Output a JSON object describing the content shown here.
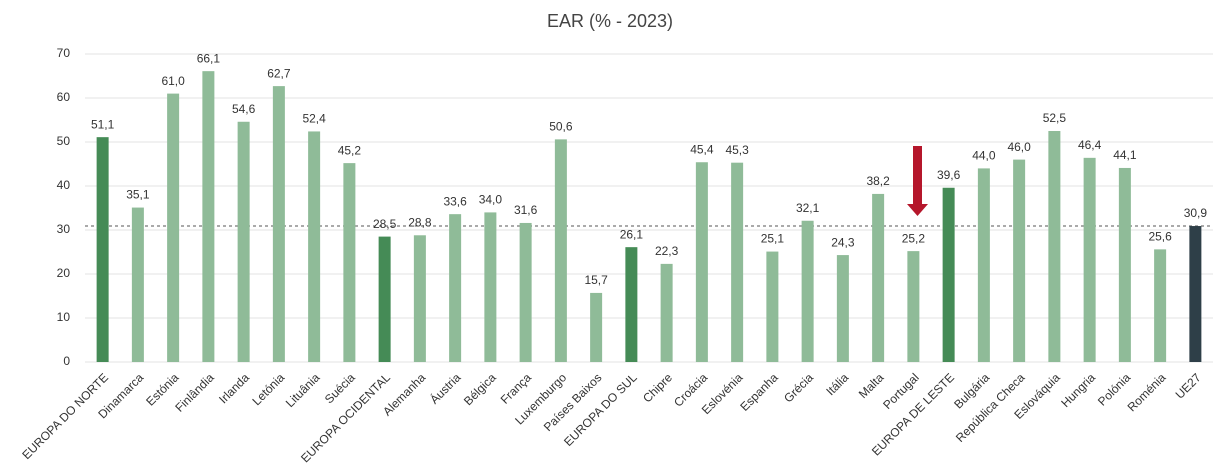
{
  "chart_data": {
    "type": "bar",
    "title": "EAR (% - 2023)",
    "categories": [
      "EUROPA DO NORTE",
      "Dinamarca",
      "Estónia",
      "Finlândia",
      "Irlanda",
      "Letónia",
      "Lituânia",
      "Suécia",
      "EUROPA OCIDENTAL",
      "Alemanha",
      "Áustria",
      "Bélgica",
      "França",
      "Luxemburgo",
      "Países Baixos",
      "EUROPA DO SUL",
      "Chipre",
      "Croácia",
      "Eslovénia",
      "Espanha",
      "Grécia",
      "Itália",
      "Malta",
      "Portugal",
      "EUROPA DE LESTE",
      "Bulgária",
      "República Checa",
      "Eslováquia",
      "Hungria",
      "Polónia",
      "Roménia",
      "UE27"
    ],
    "values": [
      51.1,
      35.1,
      61.0,
      66.1,
      54.6,
      62.7,
      52.4,
      45.2,
      28.5,
      28.8,
      33.6,
      34.0,
      31.6,
      50.6,
      15.7,
      26.1,
      22.3,
      45.4,
      45.3,
      25.1,
      32.1,
      24.3,
      38.2,
      25.2,
      39.6,
      44.0,
      46.0,
      52.5,
      46.4,
      44.1,
      25.6,
      30.9
    ],
    "value_labels": [
      "51,1",
      "35,1",
      "61,0",
      "66,1",
      "54,6",
      "62,7",
      "52,4",
      "45,2",
      "28,5",
      "28,8",
      "33,6",
      "34,0",
      "31,6",
      "50,6",
      "15,7",
      "26,1",
      "22,3",
      "45,4",
      "45,3",
      "25,1",
      "32,1",
      "24,3",
      "38,2",
      "25,2",
      "39,6",
      "44,0",
      "46,0",
      "52,5",
      "46,4",
      "44,1",
      "25,6",
      "30,9"
    ],
    "colors": [
      "#458b56",
      "#8fbb98",
      "#8fbb98",
      "#8fbb98",
      "#8fbb98",
      "#8fbb98",
      "#8fbb98",
      "#8fbb98",
      "#458b56",
      "#8fbb98",
      "#8fbb98",
      "#8fbb98",
      "#8fbb98",
      "#8fbb98",
      "#8fbb98",
      "#458b56",
      "#8fbb98",
      "#8fbb98",
      "#8fbb98",
      "#8fbb98",
      "#8fbb98",
      "#8fbb98",
      "#8fbb98",
      "#8fbb98",
      "#458b56",
      "#8fbb98",
      "#8fbb98",
      "#8fbb98",
      "#8fbb98",
      "#8fbb98",
      "#8fbb98",
      "#2e3f48"
    ],
    "reference_line": 30.9,
    "ylim": [
      0,
      70
    ],
    "yticks": [
      0,
      10,
      20,
      30,
      40,
      50,
      60,
      70
    ],
    "grid": true
  }
}
